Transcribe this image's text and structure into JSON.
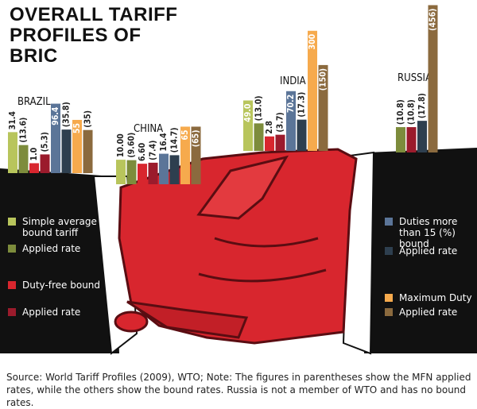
{
  "chart_data": {
    "type": "bar",
    "title": "OVERALL TARIFF PROFILES OF BRIC",
    "categories": [
      "BRAZIL",
      "CHINA",
      "INDIA",
      "RUSSIA"
    ],
    "series": [
      {
        "name": "Simple average bound tariff",
        "color": "#b8c55c",
        "values": [
          31.4,
          10,
          49,
          null
        ],
        "value_labels": [
          "31.4",
          "10.00",
          "49.0",
          null
        ]
      },
      {
        "name": "Applied rate",
        "color": "#7d8c3c",
        "values": [
          13.6,
          9.6,
          13,
          10.8
        ],
        "value_labels": [
          "(13.6)",
          "(9.60)",
          "(13.0)",
          "(10.8)"
        ]
      },
      {
        "name": "Duty-free bound",
        "color": "#d8262e",
        "values": [
          1,
          6.6,
          2.8,
          null
        ],
        "value_labels": [
          "1.0",
          "6.60",
          "2.8",
          null
        ]
      },
      {
        "name": "Applied rate",
        "color": "#9b1b2c",
        "values": [
          5.3,
          7.4,
          3.7,
          10.8
        ],
        "value_labels": [
          "(5.3)",
          "(7.4)",
          "(3.7)",
          "(10.8)"
        ]
      },
      {
        "name": "Duties more than 15 (%) bound",
        "color": "#5b7598",
        "values": [
          96.4,
          16.4,
          70.2,
          null
        ],
        "value_labels": [
          "96.4",
          "16.4",
          "70.2",
          null
        ]
      },
      {
        "name": "Applied rate",
        "color": "#2e3f4f",
        "values": [
          35.8,
          14.7,
          17.3,
          17.8
        ],
        "value_labels": [
          "(35.8)",
          "(14.7)",
          "(17.3)",
          "(17.8)"
        ]
      },
      {
        "name": "Maximum Duty",
        "color": "#f6aa4d",
        "values": [
          55,
          65,
          300,
          null
        ],
        "value_labels": [
          "55",
          "65",
          "300",
          null
        ]
      },
      {
        "name": "Applied rate",
        "color": "#8b6a3e",
        "values": [
          35,
          65,
          150,
          456
        ],
        "value_labels": [
          "(35)",
          "(65)",
          "(150)",
          "(456)"
        ]
      }
    ],
    "source": "Source: World Tariff Profiles (2009), WTO; Note: The figures in parentheses show the MFN applied rates, while the others show the bound rates. Russia is not a member of WTO and has no bound rates."
  }
}
